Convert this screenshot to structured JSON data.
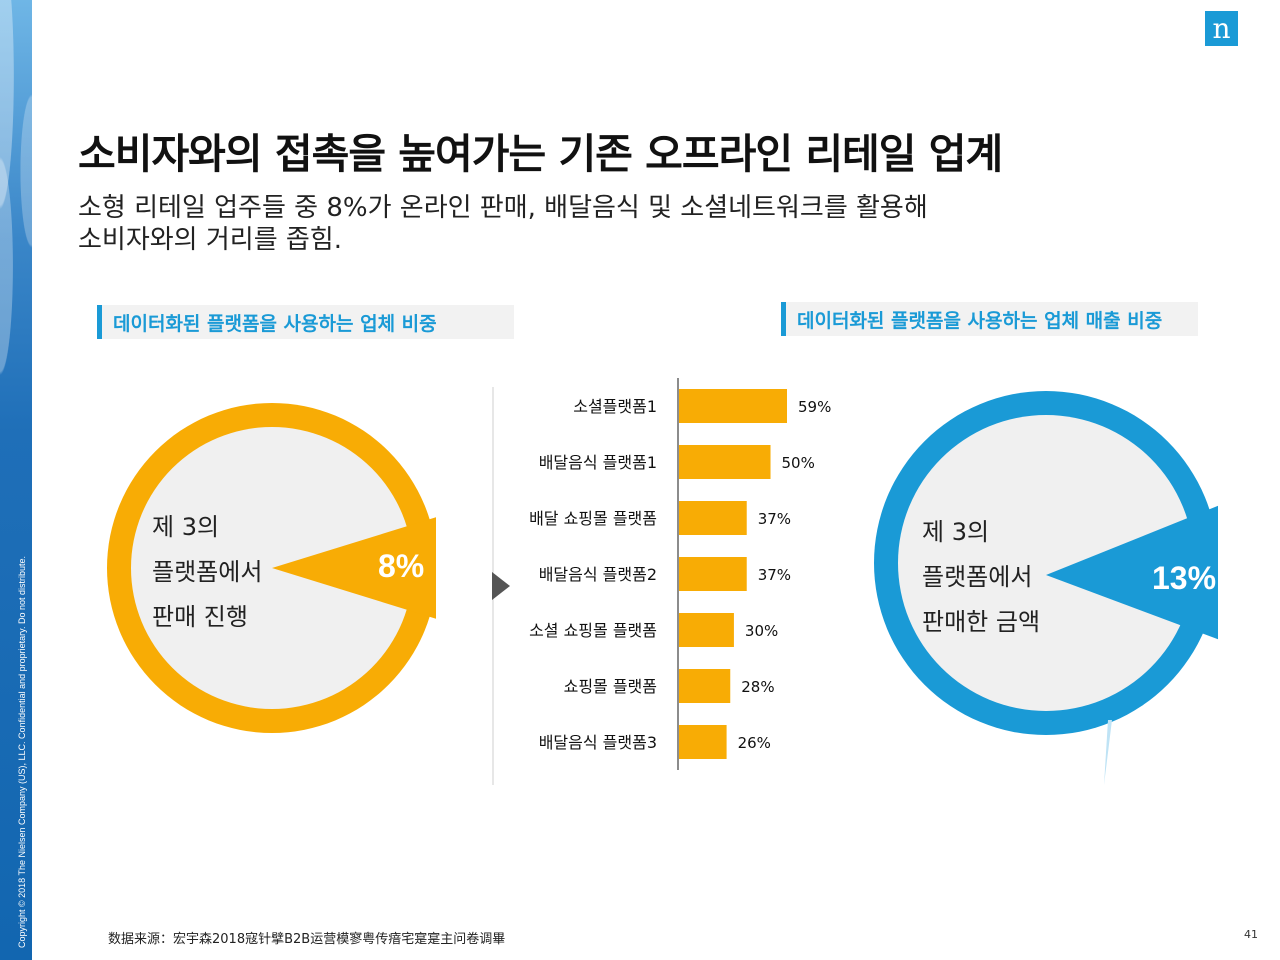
{
  "sidebar": {
    "copyright": "Copyright © 2018 The Nielsen Company (US), LLC. Confidential and proprietary. Do not distribute."
  },
  "logo": {
    "letter": "n"
  },
  "header": {
    "title": "소비자와의 접촉을 높여가는 기존 오프라인 리테일 업계",
    "subtitle_line1": "소형 리테일 업주들 중 8%가 온라인 판매, 배달음식 및 소셜네트워크를 활용해",
    "subtitle_line2": "소비자와의 거리를 좁힘."
  },
  "left_section": {
    "label": "데이터화된 플랫폼을 사용하는 업체 비중",
    "donut_text": [
      "제 3의",
      "플랫폼에서",
      "판매 진행"
    ],
    "percent": "8%"
  },
  "right_section": {
    "label": "데이터화된 플랫폼을 사용하는 업체 매출 비중",
    "donut_text": [
      "제 3의",
      "플랫폼에서",
      "판매한 금액"
    ],
    "percent": "13%"
  },
  "colors": {
    "orange": "#f8ac05",
    "blue": "#1a9ad6",
    "light_gray": "#f0f0f0",
    "arrow": "#555555"
  },
  "chart_data": {
    "type": "bar",
    "orientation": "horizontal",
    "categories": [
      "소셜플랫폼1",
      "배달음식 플랫폼1",
      "배달 쇼핑몰 플랫폼",
      "배달음식 플랫폼2",
      "소셜 쇼핑몰 플랫폼",
      "쇼핑몰 플랫폼",
      "배달음식 플랫폼3"
    ],
    "values": [
      59,
      50,
      37,
      37,
      30,
      28,
      26
    ],
    "value_labels": [
      "59%",
      "50%",
      "37%",
      "37%",
      "30%",
      "28%",
      "26%"
    ],
    "unit": "%",
    "xlim": [
      0,
      100
    ]
  },
  "footer": {
    "source": "数据来源：宏宇森2018寇针擘B2B运营模寥粤传瘖宅寔寔主问卷调畢",
    "page": "41"
  }
}
